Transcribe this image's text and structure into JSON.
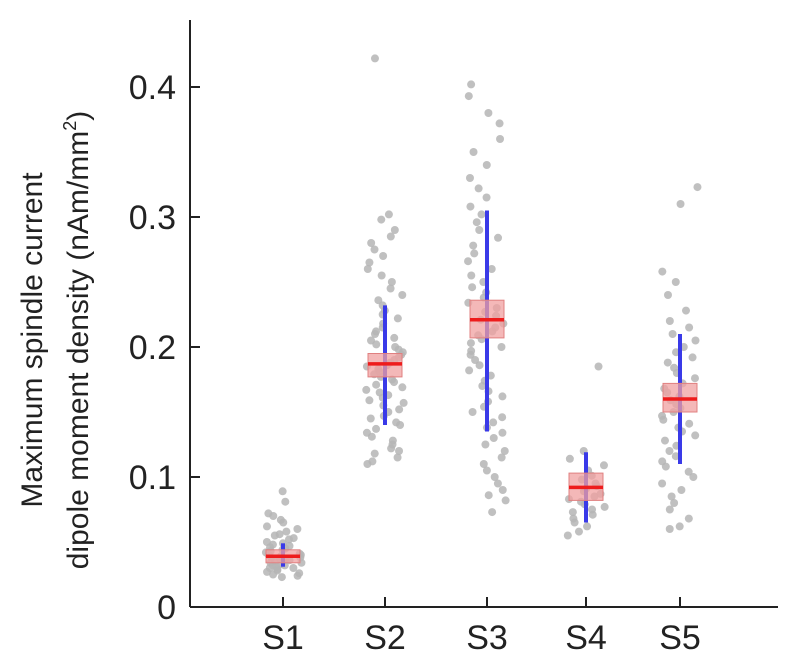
{
  "chart_data": {
    "type": "box",
    "ylabel_line1": "Maximum spindle current",
    "ylabel_line2": "dipole moment density (nAm/mm",
    "ylabel_sup": "2",
    "ylabel_close": ")",
    "ylim": [
      0,
      0.45
    ],
    "yticks": [
      "0",
      "0.1",
      "0.2",
      "0.3",
      "0.4"
    ],
    "ytick_values": [
      0,
      0.1,
      0.2,
      0.3,
      0.4
    ],
    "categories": [
      "S1",
      "S2",
      "S3",
      "S4",
      "S5"
    ],
    "colors": {
      "points": "#b5b5b5",
      "box_fill": "#f0a0a0",
      "box_stroke": "#e08080",
      "median": "#ee1c1c",
      "whisker": "#3a3ae8"
    },
    "boxes": [
      {
        "category": "S1",
        "median": 0.039,
        "q1": 0.034,
        "q3": 0.044,
        "whisker_low": 0.031,
        "whisker_high": 0.049,
        "points": [
          0.089,
          0.081,
          0.072,
          0.07,
          0.067,
          0.065,
          0.062,
          0.06,
          0.058,
          0.056,
          0.055,
          0.053,
          0.052,
          0.05,
          0.049,
          0.048,
          0.047,
          0.046,
          0.045,
          0.044,
          0.043,
          0.042,
          0.041,
          0.04,
          0.04,
          0.039,
          0.038,
          0.038,
          0.037,
          0.036,
          0.036,
          0.035,
          0.034,
          0.034,
          0.033,
          0.032,
          0.032,
          0.031,
          0.03,
          0.03,
          0.029,
          0.028,
          0.027,
          0.026,
          0.025,
          0.024,
          0.023
        ]
      },
      {
        "category": "S2",
        "median": 0.187,
        "q1": 0.177,
        "q3": 0.195,
        "whisker_low": 0.14,
        "whisker_high": 0.232,
        "points": [
          0.422,
          0.302,
          0.298,
          0.29,
          0.285,
          0.28,
          0.275,
          0.27,
          0.265,
          0.26,
          0.255,
          0.25,
          0.245,
          0.24,
          0.236,
          0.232,
          0.228,
          0.225,
          0.222,
          0.218,
          0.215,
          0.212,
          0.21,
          0.207,
          0.205,
          0.202,
          0.2,
          0.198,
          0.196,
          0.194,
          0.192,
          0.19,
          0.188,
          0.186,
          0.185,
          0.183,
          0.181,
          0.179,
          0.177,
          0.175,
          0.173,
          0.171,
          0.169,
          0.167,
          0.165,
          0.163,
          0.161,
          0.159,
          0.157,
          0.155,
          0.152,
          0.15,
          0.147,
          0.145,
          0.142,
          0.14,
          0.137,
          0.134,
          0.131,
          0.128,
          0.125,
          0.122,
          0.12,
          0.118,
          0.115,
          0.112,
          0.11
        ]
      },
      {
        "category": "S3",
        "median": 0.221,
        "q1": 0.207,
        "q3": 0.236,
        "whisker_low": 0.135,
        "whisker_high": 0.305,
        "points": [
          0.402,
          0.393,
          0.38,
          0.372,
          0.36,
          0.35,
          0.34,
          0.33,
          0.322,
          0.315,
          0.308,
          0.302,
          0.296,
          0.29,
          0.284,
          0.278,
          0.272,
          0.266,
          0.26,
          0.255,
          0.25,
          0.246,
          0.242,
          0.238,
          0.234,
          0.23,
          0.227,
          0.224,
          0.221,
          0.218,
          0.215,
          0.212,
          0.209,
          0.206,
          0.203,
          0.2,
          0.197,
          0.194,
          0.19,
          0.186,
          0.182,
          0.178,
          0.174,
          0.17,
          0.166,
          0.162,
          0.158,
          0.154,
          0.15,
          0.146,
          0.142,
          0.138,
          0.134,
          0.13,
          0.125,
          0.12,
          0.115,
          0.11,
          0.105,
          0.1,
          0.095,
          0.09,
          0.086,
          0.082,
          0.073
        ]
      },
      {
        "category": "S4",
        "median": 0.092,
        "q1": 0.082,
        "q3": 0.103,
        "whisker_low": 0.065,
        "whisker_high": 0.119,
        "points": [
          0.185,
          0.12,
          0.114,
          0.109,
          0.105,
          0.101,
          0.098,
          0.095,
          0.093,
          0.091,
          0.089,
          0.087,
          0.085,
          0.083,
          0.081,
          0.079,
          0.077,
          0.075,
          0.073,
          0.071,
          0.068,
          0.065,
          0.062,
          0.058,
          0.055
        ]
      },
      {
        "category": "S5",
        "median": 0.16,
        "q1": 0.15,
        "q3": 0.172,
        "whisker_low": 0.11,
        "whisker_high": 0.21,
        "points": [
          0.323,
          0.31,
          0.258,
          0.25,
          0.24,
          0.228,
          0.22,
          0.215,
          0.21,
          0.205,
          0.2,
          0.196,
          0.192,
          0.188,
          0.184,
          0.18,
          0.176,
          0.172,
          0.168,
          0.165,
          0.162,
          0.159,
          0.156,
          0.153,
          0.15,
          0.147,
          0.144,
          0.141,
          0.138,
          0.135,
          0.132,
          0.128,
          0.124,
          0.12,
          0.116,
          0.112,
          0.108,
          0.104,
          0.1,
          0.095,
          0.09,
          0.085,
          0.08,
          0.075,
          0.068,
          0.062,
          0.06
        ]
      }
    ]
  }
}
